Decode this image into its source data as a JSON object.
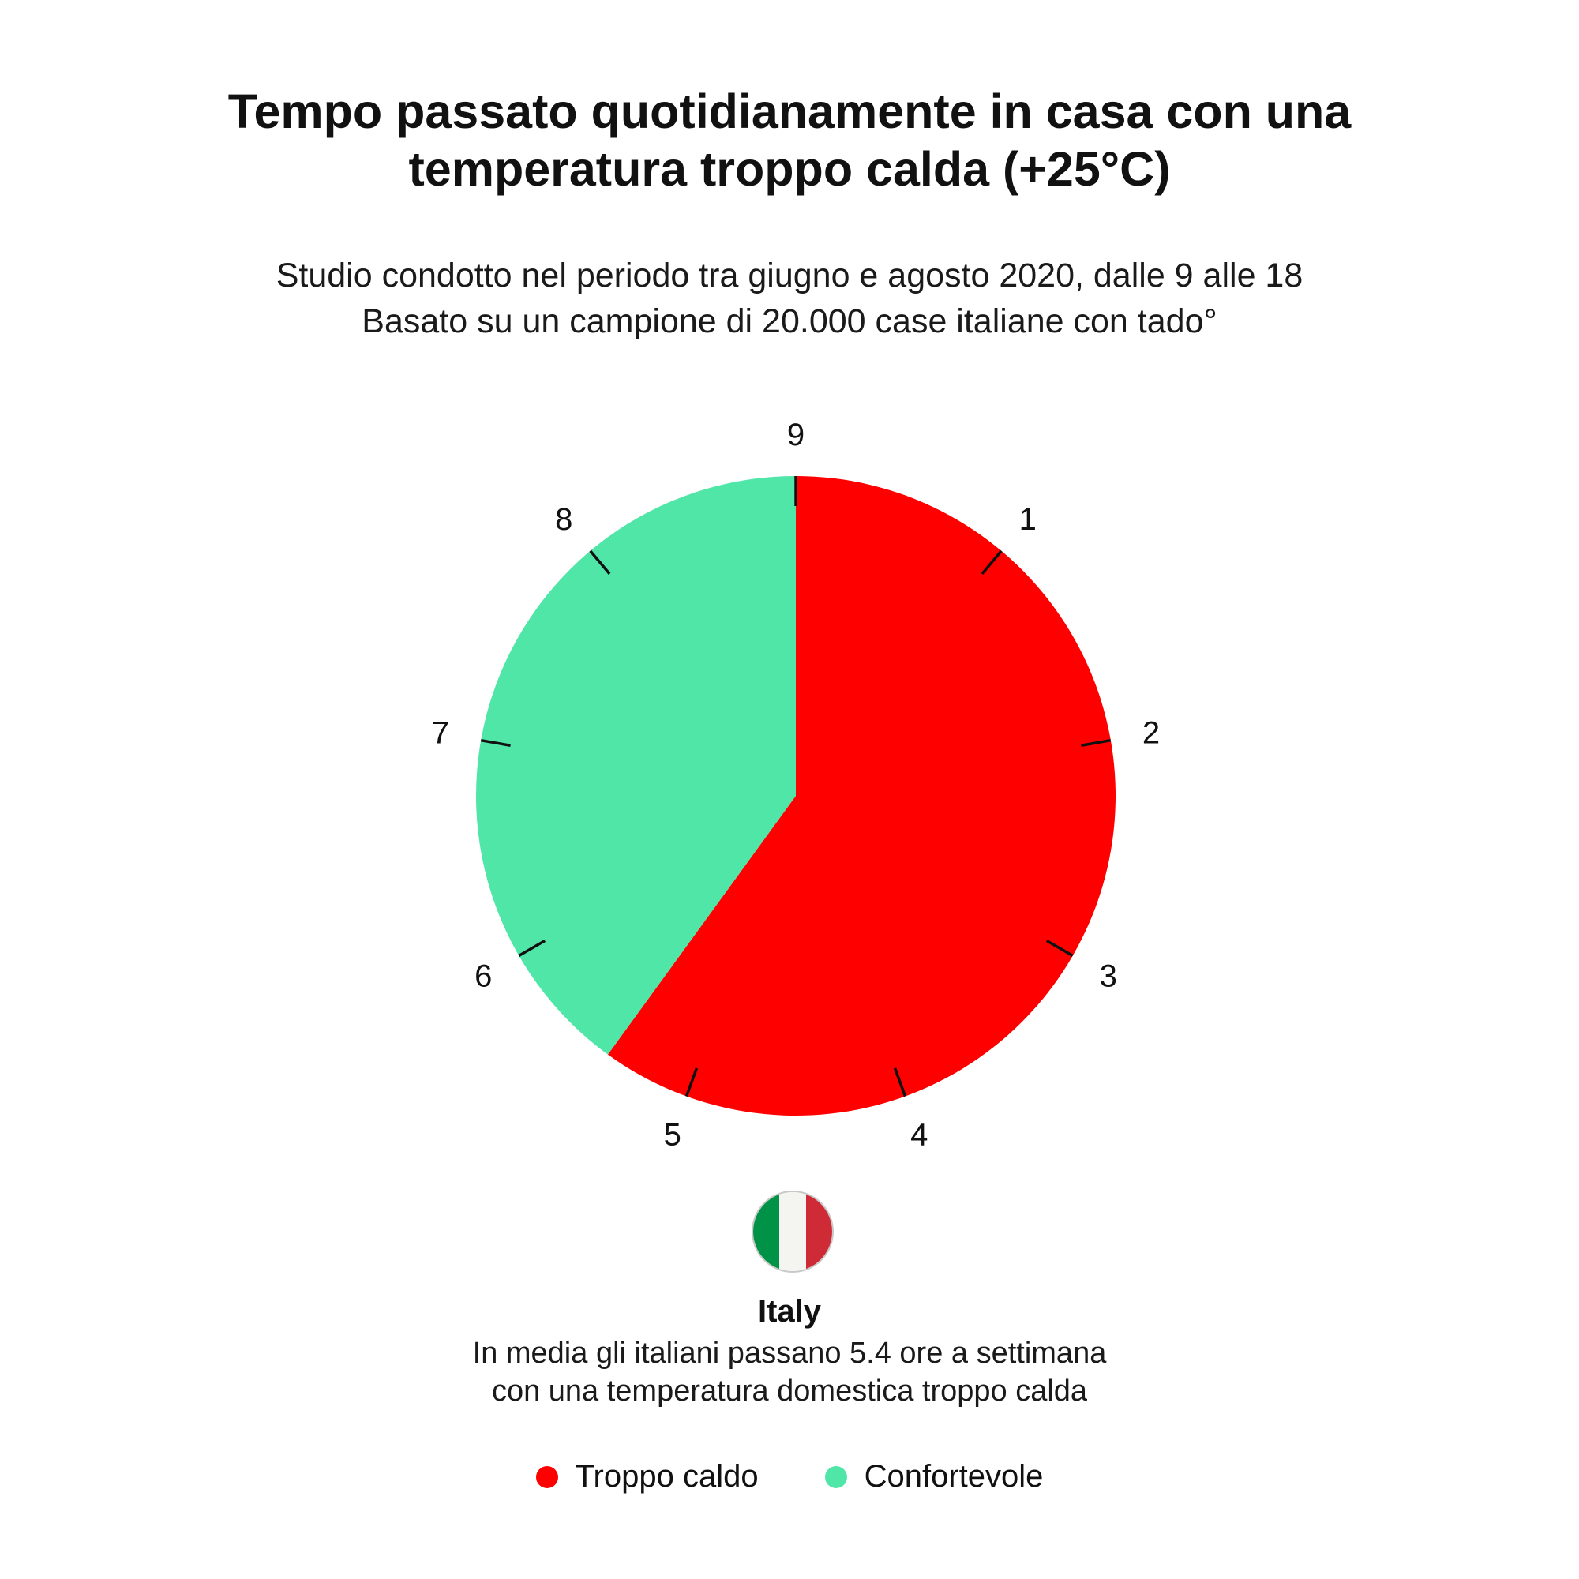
{
  "colors": {
    "hot": "#ff0000",
    "comfortable": "#50e6a8",
    "ticks": "#111111",
    "flag_green": "#009246",
    "flag_white": "#f4f5f0",
    "flag_red": "#ce2b37"
  },
  "header": {
    "title_line1": "Tempo passato quotidianamente in casa con una",
    "title_line2": "temperatura troppo calda (+25°C)",
    "subtitle_line1": "Studio condotto nel periodo tra giugno e agosto 2020, dalle 9 alle 18",
    "subtitle_line2": "Basato su un campione di 20.000 case italiane con tado°"
  },
  "country": {
    "name": "Italy",
    "flag_icon": "italy-flag-icon",
    "note_line1": "In media gli italiani passano 5.4 ore a settimana",
    "note_line2": "con una temperatura domestica troppo calda"
  },
  "legend": {
    "hot_label": "Troppo caldo",
    "comfortable_label": "Confortevole"
  },
  "chart_data": {
    "type": "pie",
    "title": "Tempo passato quotidianamente in casa con una temperatura troppo calda (+25°C)",
    "subtitle": "Studio condotto nel periodo tra giugno e agosto 2020, dalle 9 alle 18",
    "clock_hours_total": 9,
    "tick_labels": [
      "9",
      "1",
      "2",
      "3",
      "4",
      "5",
      "6",
      "7",
      "8"
    ],
    "slices": [
      {
        "name": "Troppo caldo",
        "value": 5.4,
        "color": "#ff0000"
      },
      {
        "name": "Confortevole",
        "value": 3.6,
        "color": "#50e6a8"
      }
    ],
    "start": "top",
    "direction": "clockwise",
    "legend_position": "bottom-center"
  }
}
